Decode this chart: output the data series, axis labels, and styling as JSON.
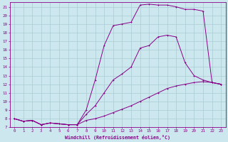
{
  "xlabel": "Windchill (Refroidissement éolien,°C)",
  "bg_color": "#cce8ee",
  "grid_color": "#aaccd4",
  "line_color": "#880088",
  "xlim": [
    -0.5,
    23.5
  ],
  "ylim": [
    7,
    21.5
  ],
  "xticks": [
    0,
    1,
    2,
    3,
    4,
    5,
    6,
    7,
    8,
    9,
    10,
    11,
    12,
    13,
    14,
    15,
    16,
    17,
    18,
    19,
    20,
    21,
    22,
    23
  ],
  "yticks": [
    7,
    8,
    9,
    10,
    11,
    12,
    13,
    14,
    15,
    16,
    17,
    18,
    19,
    20,
    21
  ],
  "series1_x": [
    0,
    1,
    2,
    3,
    4,
    5,
    6,
    7,
    8,
    9,
    10,
    11,
    12,
    13,
    14,
    15,
    16,
    17,
    18,
    19,
    20,
    21,
    22,
    23
  ],
  "series1_y": [
    8.0,
    7.7,
    7.8,
    7.3,
    7.5,
    7.4,
    7.3,
    7.3,
    7.8,
    8.0,
    8.3,
    8.7,
    9.1,
    9.5,
    10.0,
    10.5,
    11.0,
    11.5,
    11.8,
    12.0,
    12.2,
    12.3,
    12.2,
    12.0
  ],
  "series2_x": [
    0,
    1,
    2,
    3,
    4,
    5,
    6,
    7,
    8,
    9,
    10,
    11,
    12,
    13,
    14,
    15,
    16,
    17,
    18,
    19,
    20,
    21,
    22,
    23
  ],
  "series2_y": [
    8.0,
    7.7,
    7.8,
    7.3,
    7.5,
    7.4,
    7.3,
    7.3,
    8.5,
    9.5,
    11.0,
    12.5,
    13.2,
    14.0,
    16.2,
    16.5,
    17.5,
    17.7,
    17.5,
    14.5,
    13.0,
    12.5,
    12.2,
    12.0
  ],
  "series3_x": [
    0,
    1,
    2,
    3,
    4,
    5,
    6,
    7,
    8,
    9,
    10,
    11,
    12,
    13,
    14,
    15,
    16,
    17,
    18,
    19,
    20,
    21,
    22,
    23
  ],
  "series3_y": [
    8.0,
    7.7,
    7.8,
    7.3,
    7.5,
    7.4,
    7.3,
    7.3,
    9.0,
    12.5,
    16.5,
    18.8,
    19.0,
    19.2,
    21.2,
    21.3,
    21.2,
    21.2,
    21.0,
    20.7,
    20.7,
    20.5,
    12.2,
    12.0
  ]
}
